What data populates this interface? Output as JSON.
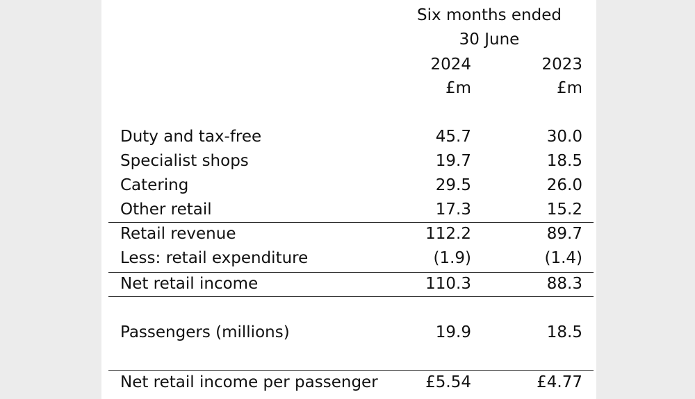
{
  "header": {
    "period_line1": "Six months ended",
    "period_line2": "30 June",
    "year_current": "2024",
    "year_prior": "2023",
    "unit_current": "£m",
    "unit_prior": "£m"
  },
  "rows": [
    {
      "label": "Duty and tax-free",
      "current": "45.7",
      "prior": "30.0"
    },
    {
      "label": "Specialist shops",
      "current": "19.7",
      "prior": "18.5"
    },
    {
      "label": "Catering",
      "current": "29.5",
      "prior": "26.0"
    },
    {
      "label": "Other retail",
      "current": "17.3",
      "prior": "15.2"
    },
    {
      "label": "Retail revenue",
      "current": "112.2",
      "prior": "89.7"
    },
    {
      "label": "Less: retail expenditure",
      "current": "(1.9)",
      "prior": "(1.4)"
    },
    {
      "label": "Net retail income",
      "current": "110.3",
      "prior": "88.3"
    },
    {
      "label": "Passengers (millions)",
      "current": "19.9",
      "prior": "18.5"
    },
    {
      "label": "Net retail income per passenger",
      "current": "£5.54",
      "prior": "£4.77"
    }
  ]
}
